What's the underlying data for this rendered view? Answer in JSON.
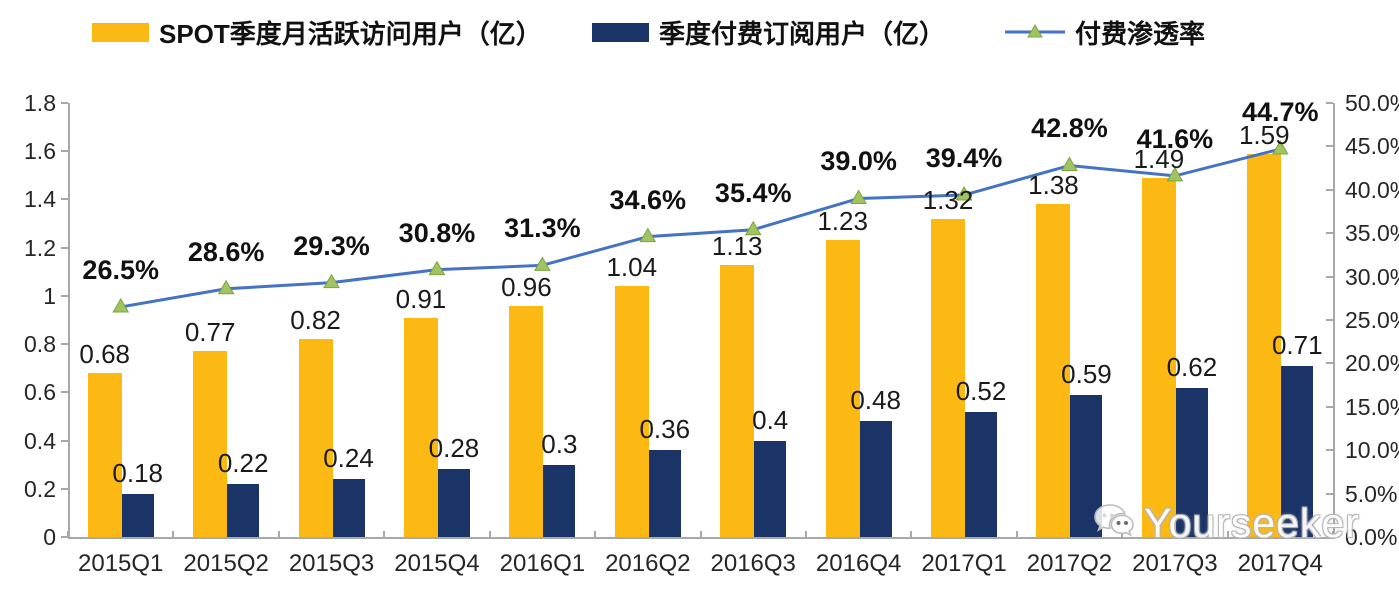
{
  "legend": [
    {
      "label": "SPOT季度月活跃访问用户（亿）",
      "type": "bar",
      "color": "#FCB913"
    },
    {
      "label": "季度付费订阅用户（亿）",
      "type": "bar",
      "color": "#1B3468"
    },
    {
      "label": "付费渗透率",
      "type": "line",
      "color": "#4472C4",
      "marker_color": "#A0C462"
    }
  ],
  "watermark": {
    "text": "Yourseeker",
    "icon": "wechat-icon"
  },
  "chart_data": {
    "type": "combo-bar-line",
    "categories": [
      "2015Q1",
      "2015Q2",
      "2015Q3",
      "2015Q4",
      "2016Q1",
      "2016Q2",
      "2016Q3",
      "2016Q4",
      "2017Q1",
      "2017Q2",
      "2017Q3",
      "2017Q4"
    ],
    "series": [
      {
        "name": "SPOT季度月活跃访问用户（亿）",
        "type": "bar",
        "axis": "left",
        "color": "#FCB913",
        "values": [
          0.68,
          0.77,
          0.82,
          0.91,
          0.96,
          1.04,
          1.13,
          1.23,
          1.32,
          1.38,
          1.49,
          1.59
        ],
        "labels": [
          "0.68",
          "0.77",
          "0.82",
          "0.91",
          "0.96",
          "1.04",
          "1.13",
          "1.23",
          "1.32",
          "1.38",
          "1.49",
          "1.59"
        ]
      },
      {
        "name": "季度付费订阅用户（亿）",
        "type": "bar",
        "axis": "left",
        "color": "#1B3468",
        "values": [
          0.18,
          0.22,
          0.24,
          0.28,
          0.3,
          0.36,
          0.4,
          0.48,
          0.52,
          0.59,
          0.62,
          0.71
        ],
        "labels": [
          "0.18",
          "0.22",
          "0.24",
          "0.28",
          "0.3",
          "0.36",
          "0.4",
          "0.48",
          "0.52",
          "0.59",
          "0.62",
          "0.71"
        ]
      },
      {
        "name": "付费渗透率",
        "type": "line",
        "axis": "right",
        "color": "#4472C4",
        "marker": "triangle",
        "marker_color": "#A0C462",
        "values": [
          26.5,
          28.6,
          29.3,
          30.8,
          31.3,
          34.6,
          35.4,
          39.0,
          39.4,
          42.8,
          41.6,
          44.7
        ],
        "labels": [
          "26.5%",
          "28.6%",
          "29.3%",
          "30.8%",
          "31.3%",
          "34.6%",
          "35.4%",
          "39.0%",
          "39.4%",
          "42.8%",
          "41.6%",
          "44.7%"
        ]
      }
    ],
    "left_axis": {
      "min": 0,
      "max": 1.8,
      "ticks": [
        "0",
        "0.2",
        "0.4",
        "0.6",
        "0.8",
        "1",
        "1.2",
        "1.4",
        "1.6",
        "1.8"
      ]
    },
    "right_axis": {
      "min": 0,
      "max": 50,
      "ticks": [
        "0.0%",
        "5.0%",
        "10.0%",
        "15.0%",
        "20.0%",
        "25.0%",
        "30.0%",
        "35.0%",
        "40.0%",
        "45.0%",
        "50.0%"
      ]
    },
    "grid": false,
    "legend_position": "top"
  }
}
